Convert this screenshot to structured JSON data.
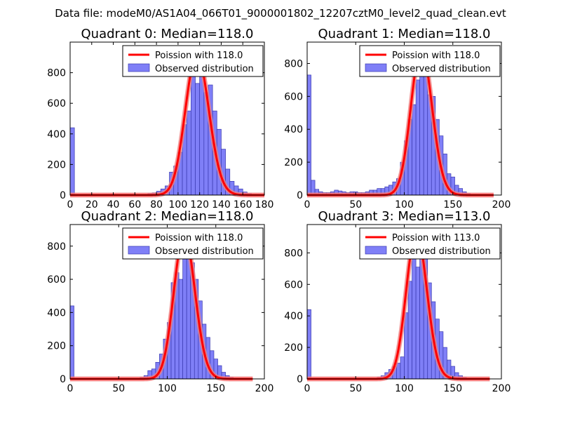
{
  "suptitle": "Data file: modeM0/AS1A04_066T01_9000001802_12207cztM0_level2_quad_clean.evt",
  "colors": {
    "bar_fill": "#7f7ff7",
    "bar_edge": "#3a3ab0",
    "poisson_line": "#ff0000",
    "poisson_glow": "#f08080",
    "axes": "#000000",
    "background": "#ffffff"
  },
  "chart_data": [
    {
      "type": "bar",
      "title": "Quadrant 0: Median=118.0",
      "legend": [
        "Poission with 118.0",
        "Observed distribution"
      ],
      "legend_position": "top-right",
      "xlim": [
        0,
        180
      ],
      "ylim": [
        0,
        1000
      ],
      "xticks": [
        0,
        20,
        40,
        60,
        80,
        100,
        120,
        140,
        160,
        180
      ],
      "yticks": [
        0,
        200,
        400,
        600,
        800
      ],
      "bin_width": 4,
      "bins": [
        [
          0,
          440
        ],
        [
          72,
          10
        ],
        [
          76,
          15
        ],
        [
          80,
          25
        ],
        [
          84,
          40
        ],
        [
          88,
          60
        ],
        [
          92,
          150
        ],
        [
          96,
          190
        ],
        [
          100,
          280
        ],
        [
          104,
          460
        ],
        [
          108,
          550
        ],
        [
          112,
          810
        ],
        [
          116,
          730
        ],
        [
          120,
          850
        ],
        [
          124,
          670
        ],
        [
          128,
          720
        ],
        [
          132,
          550
        ],
        [
          136,
          430
        ],
        [
          140,
          300
        ],
        [
          144,
          170
        ],
        [
          148,
          90
        ],
        [
          152,
          60
        ],
        [
          156,
          40
        ],
        [
          160,
          20
        ],
        [
          164,
          10
        ]
      ],
      "poisson_mean": 118.0,
      "poisson_peak": 920,
      "poisson_x": [
        0,
        180
      ]
    },
    {
      "type": "bar",
      "title": "Quadrant 1: Median=118.0",
      "legend": [
        "Poission with 118.0",
        "Observed distribution"
      ],
      "legend_position": "top-right",
      "xlim": [
        0,
        200
      ],
      "ylim": [
        0,
        930
      ],
      "xticks": [
        0,
        50,
        100,
        150,
        200
      ],
      "yticks": [
        0,
        200,
        400,
        600,
        800
      ],
      "bin_width": 4,
      "bins": [
        [
          0,
          730
        ],
        [
          4,
          90
        ],
        [
          8,
          35
        ],
        [
          12,
          20
        ],
        [
          16,
          15
        ],
        [
          20,
          15
        ],
        [
          24,
          20
        ],
        [
          28,
          30
        ],
        [
          32,
          25
        ],
        [
          36,
          20
        ],
        [
          40,
          15
        ],
        [
          44,
          20
        ],
        [
          48,
          20
        ],
        [
          52,
          15
        ],
        [
          56,
          15
        ],
        [
          60,
          20
        ],
        [
          64,
          30
        ],
        [
          68,
          30
        ],
        [
          72,
          40
        ],
        [
          76,
          40
        ],
        [
          80,
          50
        ],
        [
          84,
          60
        ],
        [
          88,
          80
        ],
        [
          92,
          100
        ],
        [
          96,
          200
        ],
        [
          100,
          330
        ],
        [
          104,
          460
        ],
        [
          108,
          550
        ],
        [
          112,
          700
        ],
        [
          116,
          810
        ],
        [
          120,
          860
        ],
        [
          124,
          610
        ],
        [
          128,
          600
        ],
        [
          132,
          460
        ],
        [
          136,
          360
        ],
        [
          140,
          250
        ],
        [
          144,
          130
        ],
        [
          148,
          110
        ],
        [
          152,
          60
        ],
        [
          156,
          40
        ],
        [
          160,
          20
        ],
        [
          164,
          10
        ]
      ],
      "poisson_mean": 118.0,
      "poisson_peak": 890,
      "poisson_x": [
        0,
        192
      ]
    },
    {
      "type": "bar",
      "title": "Quadrant 2: Median=118.0",
      "legend": [
        "Poission with 118.0",
        "Observed distribution"
      ],
      "legend_position": "top-right",
      "xlim": [
        0,
        200
      ],
      "ylim": [
        0,
        930
      ],
      "xticks": [
        0,
        50,
        100,
        150,
        200
      ],
      "yticks": [
        0,
        200,
        400,
        600,
        800
      ],
      "bin_width": 4,
      "bins": [
        [
          0,
          440
        ],
        [
          72,
          10
        ],
        [
          76,
          20
        ],
        [
          80,
          50
        ],
        [
          84,
          60
        ],
        [
          88,
          100
        ],
        [
          92,
          150
        ],
        [
          96,
          240
        ],
        [
          100,
          340
        ],
        [
          104,
          580
        ],
        [
          108,
          640
        ],
        [
          112,
          600
        ],
        [
          116,
          820
        ],
        [
          120,
          770
        ],
        [
          124,
          700
        ],
        [
          128,
          600
        ],
        [
          132,
          470
        ],
        [
          136,
          330
        ],
        [
          140,
          250
        ],
        [
          144,
          170
        ],
        [
          148,
          120
        ],
        [
          152,
          80
        ],
        [
          156,
          40
        ],
        [
          160,
          20
        ],
        [
          164,
          10
        ]
      ],
      "poisson_mean": 118.0,
      "poisson_peak": 870,
      "poisson_x": [
        0,
        188
      ]
    },
    {
      "type": "bar",
      "title": "Quadrant 3: Median=113.0",
      "legend": [
        "Poission with 113.0",
        "Observed distribution"
      ],
      "legend_position": "top-right",
      "xlim": [
        0,
        200
      ],
      "ylim": [
        0,
        980
      ],
      "xticks": [
        0,
        50,
        100,
        150,
        200
      ],
      "yticks": [
        0,
        200,
        400,
        600,
        800
      ],
      "bin_width": 4,
      "bins": [
        [
          0,
          440
        ],
        [
          72,
          10
        ],
        [
          76,
          20
        ],
        [
          80,
          40
        ],
        [
          84,
          60
        ],
        [
          88,
          80
        ],
        [
          92,
          100
        ],
        [
          96,
          140
        ],
        [
          100,
          420
        ],
        [
          104,
          620
        ],
        [
          108,
          780
        ],
        [
          112,
          710
        ],
        [
          116,
          910
        ],
        [
          120,
          840
        ],
        [
          124,
          610
        ],
        [
          128,
          490
        ],
        [
          132,
          380
        ],
        [
          136,
          300
        ],
        [
          140,
          200
        ],
        [
          144,
          120
        ],
        [
          148,
          80
        ],
        [
          152,
          40
        ],
        [
          156,
          20
        ],
        [
          160,
          10
        ]
      ],
      "poisson_mean": 113.0,
      "poisson_peak": 930,
      "poisson_x": [
        0,
        188
      ]
    }
  ]
}
